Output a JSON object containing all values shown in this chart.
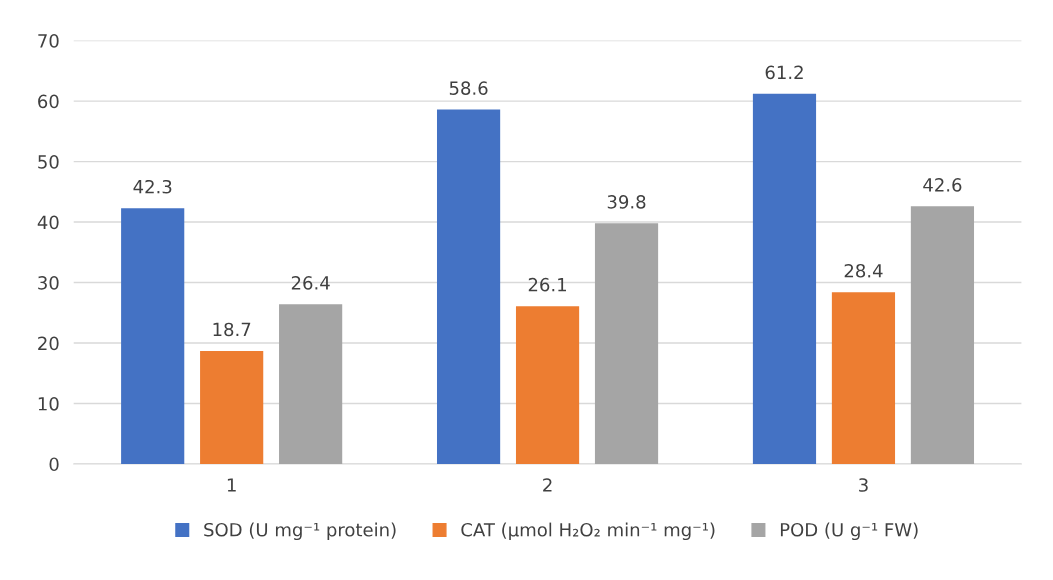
{
  "chart_data": {
    "type": "bar",
    "categories": [
      "1",
      "2",
      "3"
    ],
    "series": [
      {
        "name": "SOD (U mg⁻¹ protein)",
        "color": "#4472c4",
        "values": [
          42.3,
          58.6,
          61.2
        ]
      },
      {
        "name": "CAT (μmol H₂O₂ min⁻¹ mg⁻¹)",
        "color": "#ed7d31",
        "values": [
          18.7,
          26.1,
          28.4
        ]
      },
      {
        "name": "POD (U g⁻¹ FW)",
        "color": "#a5a5a5",
        "values": [
          26.4,
          39.8,
          42.6
        ]
      }
    ],
    "ylim": [
      0,
      70
    ],
    "yticks": [
      0,
      10,
      20,
      30,
      40,
      50,
      60,
      70
    ],
    "grid": "y",
    "legend": "bottom",
    "data_labels": true
  }
}
